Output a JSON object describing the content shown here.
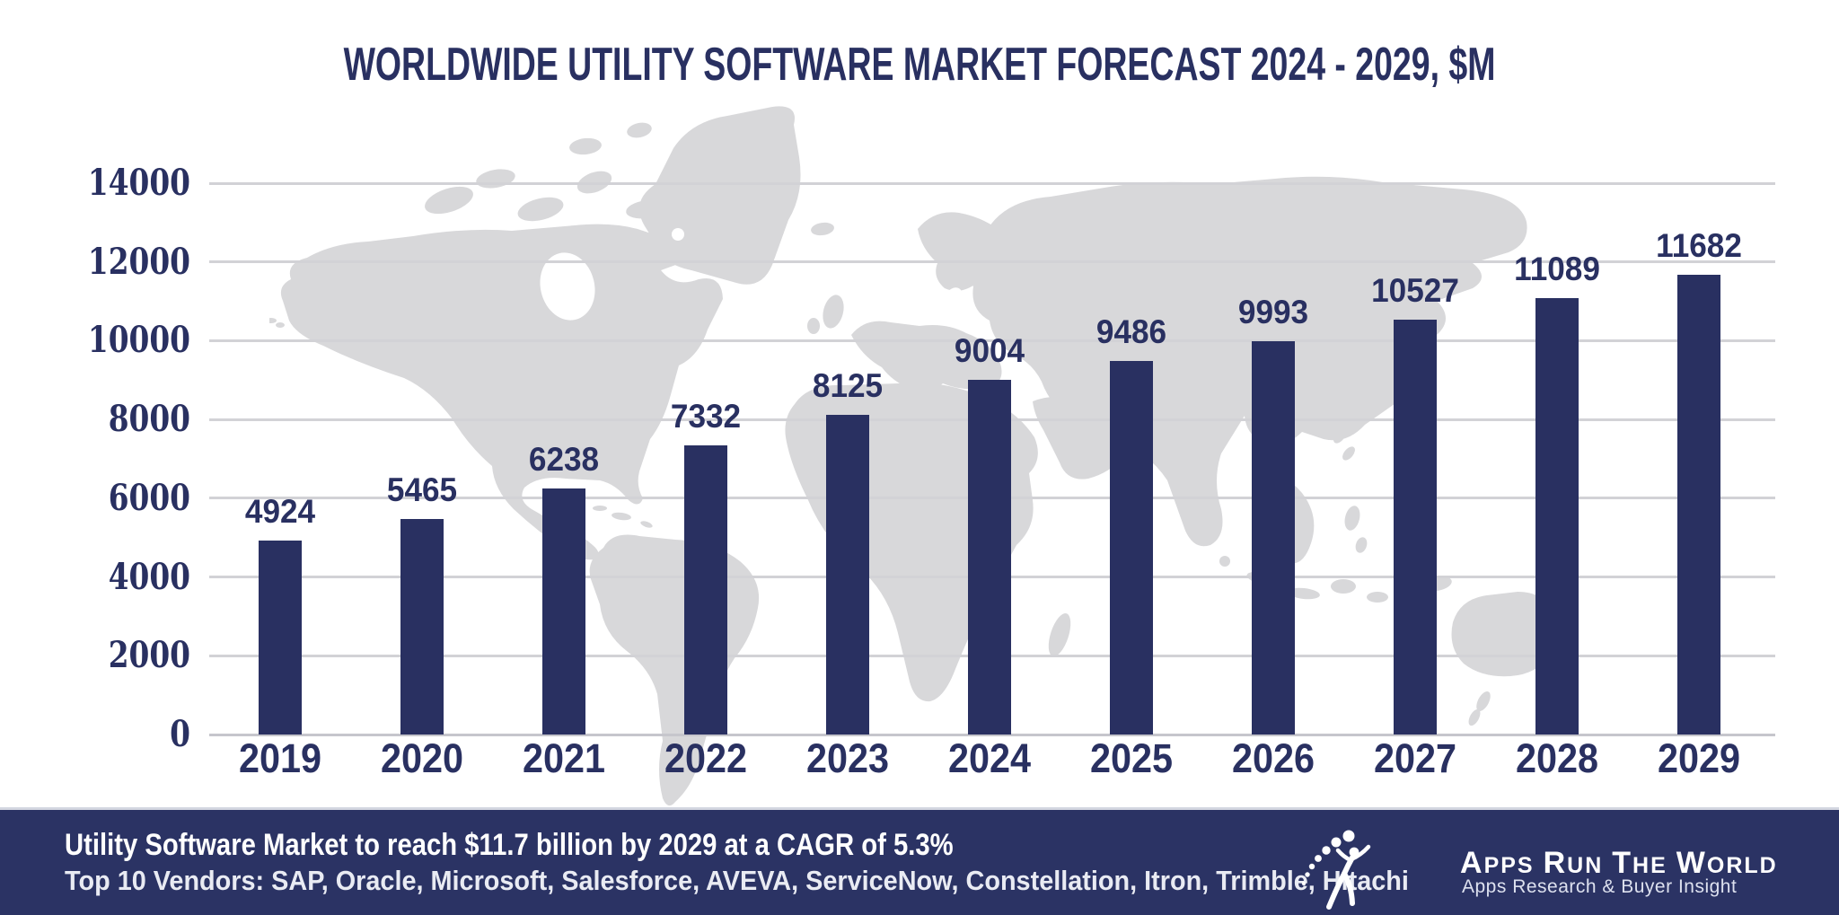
{
  "title": "WORLDWIDE UTILITY SOFTWARE MARKET FORECAST 2024 - 2029, $M",
  "chart_data": {
    "type": "bar",
    "categories": [
      "2019",
      "2020",
      "2021",
      "2022",
      "2023",
      "2024",
      "2025",
      "2026",
      "2027",
      "2028",
      "2029"
    ],
    "values": [
      4924,
      5465,
      6238,
      7332,
      8125,
      9004,
      9486,
      9993,
      10527,
      11089,
      11682
    ],
    "title": "WORLDWIDE UTILITY SOFTWARE MARKET FORECAST 2024 - 2029, $M",
    "xlabel": "",
    "ylabel": "",
    "ylim": [
      0,
      14000
    ],
    "yticks": [
      0,
      2000,
      4000,
      6000,
      8000,
      10000,
      12000,
      14000
    ],
    "grid": true,
    "legend": false,
    "value_labels_shown": true,
    "bar_color": "#293061",
    "background": "world-map-silhouette"
  },
  "footer": {
    "line1": "Utility Software Market to reach $11.7 billion by 2029 at a CAGR of 5.3%",
    "line2": "Top 10 Vendors: SAP, Oracle, Microsoft, Salesforce, AVEVA, ServiceNow, Constellation, Itron, Trimble, Hitachi",
    "background": "#2b3364"
  },
  "logo": {
    "name": "Apps Run The World",
    "words": [
      "Apps",
      "Run",
      "The",
      "World"
    ],
    "tagline": "Apps Research & Buyer Insight",
    "icon": "runner-with-dotted-arc"
  },
  "colors": {
    "navy": "#293061",
    "map_gray": "#d8d8da",
    "gridline": "#d2d2d6",
    "footer_navy": "#2b3364",
    "white": "#ffffff"
  }
}
